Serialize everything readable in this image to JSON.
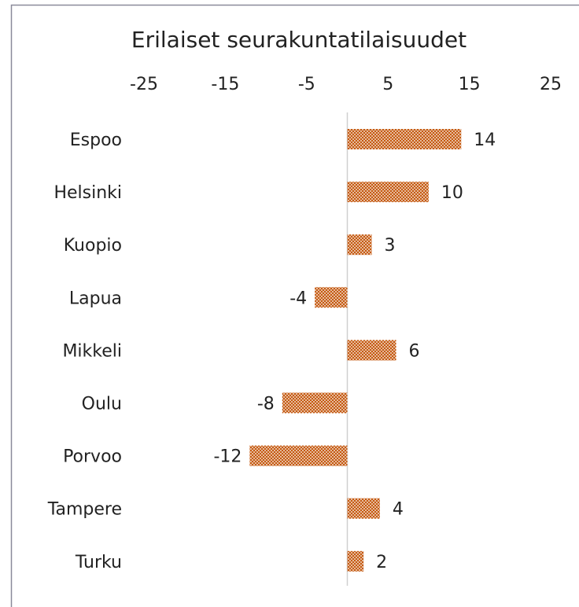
{
  "chart_data": {
    "type": "bar",
    "orientation": "horizontal",
    "title": "Erilaiset seurakuntatilaisuudet",
    "categories": [
      "Espoo",
      "Helsinki",
      "Kuopio",
      "Lapua",
      "Mikkeli",
      "Oulu",
      "Porvoo",
      "Tampere",
      "Turku"
    ],
    "values": [
      14,
      10,
      3,
      -4,
      6,
      -8,
      -12,
      4,
      2
    ],
    "color": "#c55a11",
    "xlim": [
      -25,
      25
    ],
    "xticks": [
      -25,
      -15,
      -5,
      5,
      15,
      25
    ]
  }
}
